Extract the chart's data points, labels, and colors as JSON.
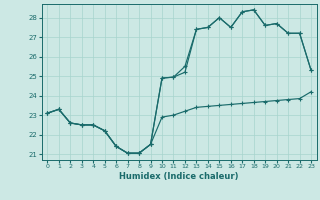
{
  "xlabel": "Humidex (Indice chaleur)",
  "bg_color": "#cce8e4",
  "grid_color": "#a8d4ce",
  "line_color": "#1a6b6b",
  "xlim": [
    -0.5,
    23.5
  ],
  "ylim": [
    20.7,
    28.7
  ],
  "xticks": [
    0,
    1,
    2,
    3,
    4,
    5,
    6,
    7,
    8,
    9,
    10,
    11,
    12,
    13,
    14,
    15,
    16,
    17,
    18,
    19,
    20,
    21,
    22,
    23
  ],
  "yticks": [
    21,
    22,
    23,
    24,
    25,
    26,
    27,
    28
  ],
  "series1": [
    23.1,
    23.3,
    22.6,
    22.5,
    22.5,
    22.2,
    21.4,
    21.05,
    21.05,
    21.5,
    22.9,
    23.0,
    23.2,
    23.4,
    23.45,
    23.5,
    23.55,
    23.6,
    23.65,
    23.7,
    23.75,
    23.8,
    23.85,
    24.2
  ],
  "series2": [
    23.1,
    23.3,
    22.6,
    22.5,
    22.5,
    22.2,
    21.4,
    21.05,
    21.05,
    21.5,
    24.9,
    24.95,
    25.5,
    27.4,
    27.5,
    28.0,
    27.5,
    28.3,
    28.4,
    27.6,
    27.7,
    27.2,
    27.2,
    25.3
  ],
  "series3": [
    23.1,
    23.3,
    22.6,
    22.5,
    22.5,
    22.2,
    21.4,
    21.05,
    21.05,
    21.5,
    24.9,
    24.95,
    25.2,
    27.4,
    27.5,
    28.0,
    27.5,
    28.3,
    28.4,
    27.6,
    27.7,
    27.2,
    27.2,
    25.3
  ]
}
